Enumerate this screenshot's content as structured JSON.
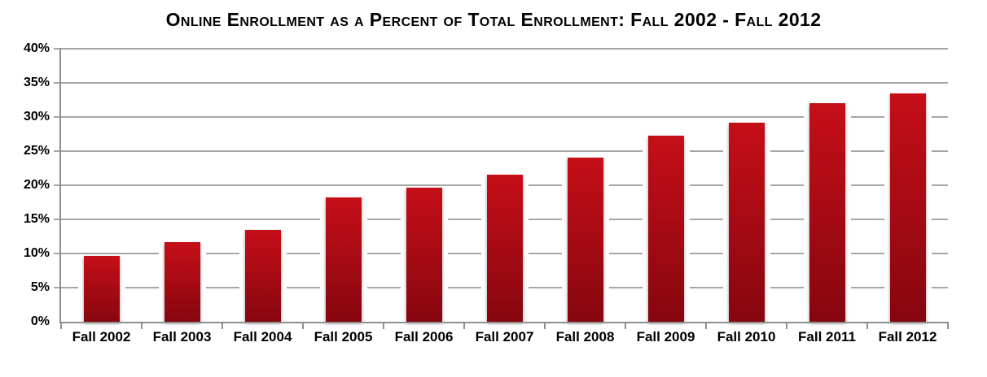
{
  "chart_data": {
    "type": "bar",
    "title": "Online Enrollment as a Percent of Total Enrollment: Fall 2002 - Fall 2012",
    "categories": [
      "Fall 2002",
      "Fall 2003",
      "Fall 2004",
      "Fall 2005",
      "Fall 2006",
      "Fall 2007",
      "Fall 2008",
      "Fall 2009",
      "Fall 2010",
      "Fall 2011",
      "Fall 2012"
    ],
    "values": [
      9.6,
      11.7,
      13.5,
      18.2,
      19.6,
      21.6,
      24.1,
      27.3,
      29.2,
      32.0,
      33.5
    ],
    "xlabel": "",
    "ylabel": "",
    "ylim": [
      0,
      40
    ],
    "ytick_step": 5,
    "ytick_labels": [
      "0%",
      "5%",
      "10%",
      "15%",
      "20%",
      "25%",
      "30%",
      "35%",
      "40%"
    ],
    "grid": true,
    "legend_position": "none",
    "colors": {
      "bar_gradient_top": "#c50e18",
      "bar_gradient_bottom": "#86060f",
      "gridline": "#a6a6a6",
      "axis": "#8e8e8e",
      "text": "#000000",
      "background": "#ffffff"
    }
  }
}
